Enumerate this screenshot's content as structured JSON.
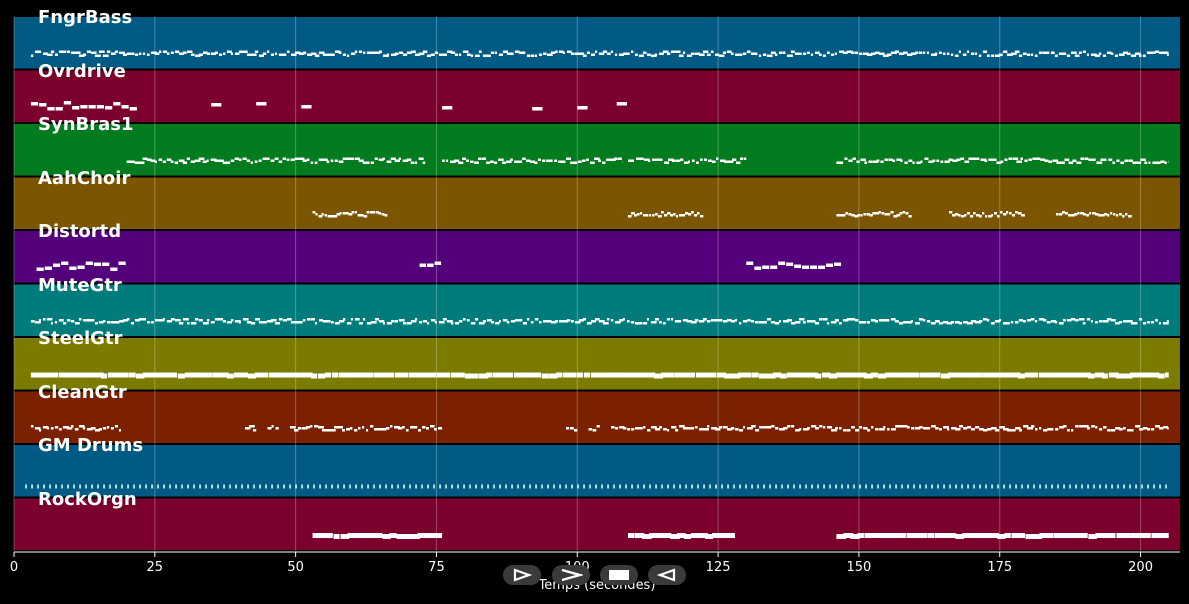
{
  "chart_data": {
    "type": "piano-roll",
    "xlabel": "Temps (secondes)",
    "xlim": [
      0,
      207
    ],
    "x_ticks": [
      0,
      25,
      50,
      75,
      100,
      125,
      150,
      175,
      200
    ],
    "grid": true,
    "tracks": [
      {
        "name": "FngrBass",
        "color": "#005a84",
        "pattern": "dense-line",
        "segments": [
          [
            3,
            205
          ]
        ]
      },
      {
        "name": "Ovrdrive",
        "color": "#7b002d",
        "pattern": "sparse",
        "segments": [
          [
            3,
            22
          ],
          [
            35,
            37
          ],
          [
            43,
            45
          ],
          [
            51,
            53
          ],
          [
            76,
            78
          ],
          [
            92,
            94
          ],
          [
            100,
            102
          ],
          [
            107,
            109
          ]
        ]
      },
      {
        "name": "SynBras1",
        "color": "#007b1d",
        "pattern": "dense-line",
        "segments": [
          [
            20,
            73
          ],
          [
            76,
            108
          ],
          [
            109,
            130
          ],
          [
            146,
            205
          ]
        ]
      },
      {
        "name": "AahChoir",
        "color": "#7b5500",
        "pattern": "clusters",
        "segments": [
          [
            53,
            66
          ],
          [
            109,
            122
          ],
          [
            146,
            159
          ],
          [
            166,
            179
          ],
          [
            185,
            198
          ]
        ]
      },
      {
        "name": "Distortd",
        "color": "#54007b",
        "pattern": "sparse",
        "segments": [
          [
            4,
            20
          ],
          [
            72,
            76
          ],
          [
            130,
            147
          ]
        ]
      },
      {
        "name": "MuteGtr",
        "color": "#007b7b",
        "pattern": "dense-line",
        "segments": [
          [
            3,
            205
          ]
        ]
      },
      {
        "name": "SteelGtr",
        "color": "#7b7b00",
        "pattern": "thick-line",
        "segments": [
          [
            3,
            205
          ]
        ]
      },
      {
        "name": "CleanGtr",
        "color": "#7b2000",
        "pattern": "dense-line",
        "segments": [
          [
            3,
            19
          ],
          [
            41,
            43
          ],
          [
            45,
            47
          ],
          [
            49,
            76
          ],
          [
            98,
            100
          ],
          [
            102,
            104
          ],
          [
            106,
            205
          ]
        ]
      },
      {
        "name": "GM Drums",
        "color": "#005a84",
        "pattern": "drums",
        "segments": [
          [
            2,
            205
          ]
        ]
      },
      {
        "name": "RockOrgn",
        "color": "#7b002d",
        "pattern": "thick-line",
        "segments": [
          [
            53,
            76
          ],
          [
            109,
            128
          ],
          [
            146,
            205
          ]
        ]
      }
    ]
  },
  "controls": [
    {
      "name": "play-button",
      "icon": "play-icon"
    },
    {
      "name": "forward-button",
      "icon": "chevron-right-icon"
    },
    {
      "name": "stop-button",
      "icon": "stop-icon"
    },
    {
      "name": "rewind-button",
      "icon": "rewind-icon"
    }
  ]
}
